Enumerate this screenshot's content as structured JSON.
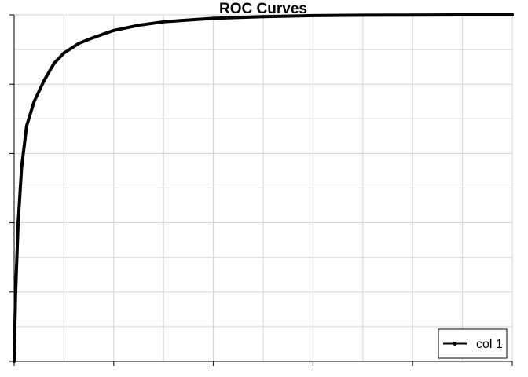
{
  "chart_data": {
    "type": "line",
    "title": "ROC Curves",
    "xlabel": "",
    "ylabel": "",
    "xlim": [
      0,
      1
    ],
    "ylim": [
      0,
      1
    ],
    "grid": true,
    "legend_position": "bottom-right",
    "series": [
      {
        "name": "col 1",
        "color": "#000000",
        "marker": "circle",
        "x": [
          0,
          0.003,
          0.008,
          0.015,
          0.025,
          0.04,
          0.06,
          0.08,
          0.1,
          0.13,
          0.16,
          0.2,
          0.25,
          0.3,
          0.4,
          0.5,
          0.6,
          0.7,
          0.8,
          0.9,
          1
        ],
        "y": [
          0,
          0.2,
          0.4,
          0.56,
          0.68,
          0.75,
          0.81,
          0.86,
          0.89,
          0.918,
          0.935,
          0.955,
          0.97,
          0.98,
          0.99,
          0.995,
          0.998,
          0.999,
          0.9995,
          1,
          1
        ]
      }
    ]
  }
}
